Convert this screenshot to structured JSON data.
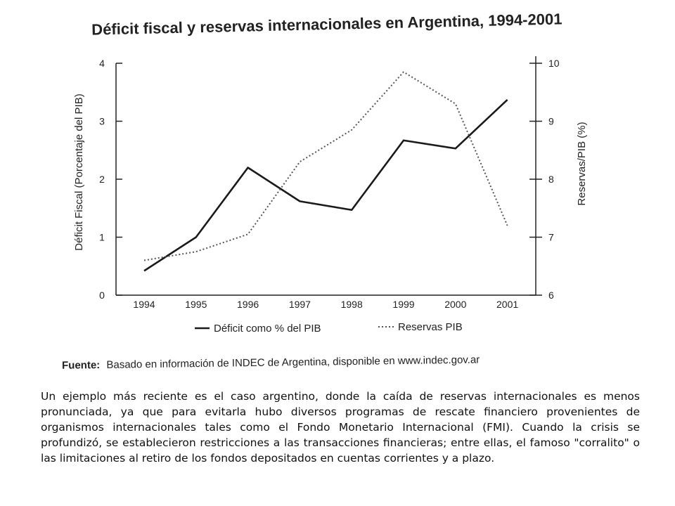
{
  "chart_data": {
    "type": "line",
    "title": "Déficit fiscal y reservas internacionales en Argentina, 1994-2001",
    "categories": [
      "1994",
      "1995",
      "1996",
      "1997",
      "1998",
      "1999",
      "2000",
      "2001"
    ],
    "series": [
      {
        "name": "Déficit como % del PIB",
        "axis": "left",
        "style": "solid",
        "values": [
          0.42,
          1.0,
          2.2,
          1.62,
          1.47,
          2.67,
          2.53,
          3.37
        ]
      },
      {
        "name": "Reservas PIB",
        "axis": "right",
        "style": "dotted",
        "values": [
          6.6,
          6.75,
          7.05,
          8.3,
          8.85,
          9.85,
          9.3,
          7.2
        ]
      }
    ],
    "ylabel": "Déficit Fiscal (Porcentaje del PIB)",
    "ylabel_right": "Reservas/PIB (%)",
    "ylim": [
      0,
      4
    ],
    "ylim_right": [
      6,
      10
    ],
    "yticks": [
      "0",
      "1",
      "2",
      "3",
      "4"
    ],
    "yticks_right": [
      "6",
      "7",
      "8",
      "9",
      "10"
    ],
    "grid": false,
    "legend_position": "bottom"
  },
  "source": {
    "label": "Fuente:",
    "text": "Basado en información de INDEC de Argentina, disponible en www.indec.gov.ar"
  },
  "paragraph": "Un ejemplo más reciente es el caso argentino, donde la caída de reservas internacionales es menos pronunciada, ya que para evitarla hubo diversos programas de rescate financiero provenientes de organismos internacionales tales como el Fondo Monetario Internacional (FMI). Cuando la crisis se profundizó, se establecieron restricciones a las transacciones financieras; entre ellas, el famoso \"corralito\" o las limitaciones al retiro de los fondos depositados en cuentas corrientes y a plazo.",
  "colors": {
    "ink": "#222222",
    "deficit_line": "#1a1a1a",
    "reserves_line": "#555555"
  }
}
